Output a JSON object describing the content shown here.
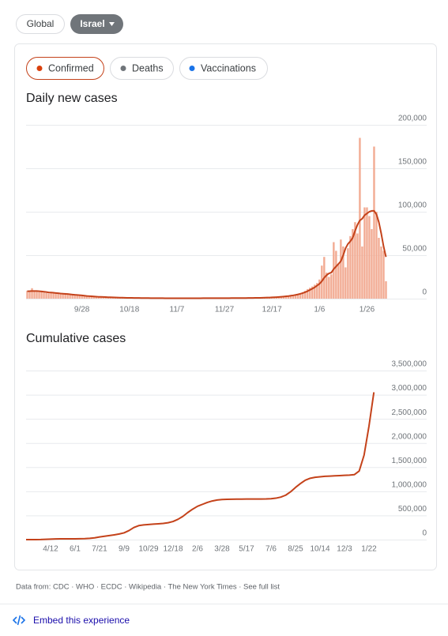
{
  "tabs": [
    "Global",
    "Israel"
  ],
  "metrics": [
    "Confirmed",
    "Deaths",
    "Vaccinations"
  ],
  "chart_data": [
    {
      "type": "bar",
      "title": "Daily new cases",
      "categories": [
        null,
        null,
        null,
        null,
        null,
        null,
        null,
        null,
        null,
        null,
        null,
        null,
        null,
        null,
        null,
        null,
        null,
        null,
        null,
        null,
        null,
        null,
        null,
        "9/28",
        null,
        null,
        null,
        null,
        null,
        null,
        null,
        null,
        null,
        null,
        null,
        null,
        null,
        null,
        null,
        null,
        null,
        null,
        null,
        "10/18",
        null,
        null,
        null,
        null,
        null,
        null,
        null,
        null,
        null,
        null,
        null,
        null,
        null,
        null,
        null,
        null,
        null,
        null,
        null,
        "11/7",
        null,
        null,
        null,
        null,
        null,
        null,
        null,
        null,
        null,
        null,
        null,
        null,
        null,
        null,
        null,
        null,
        null,
        null,
        null,
        "11/27",
        null,
        null,
        null,
        null,
        null,
        null,
        null,
        null,
        null,
        null,
        null,
        null,
        null,
        null,
        null,
        null,
        null,
        null,
        null,
        "12/17",
        null,
        null,
        null,
        null,
        null,
        null,
        null,
        null,
        null,
        null,
        null,
        null,
        null,
        null,
        null,
        null,
        null,
        null,
        null,
        "1/6",
        null,
        null,
        null,
        null,
        null,
        null,
        null,
        null,
        null,
        null,
        null,
        null,
        null,
        null,
        null,
        null,
        null,
        null,
        null,
        "1/26",
        null,
        null,
        null,
        null,
        null,
        null,
        null,
        null
      ],
      "series": [
        {
          "type": "bar",
          "color": "#f2ab93",
          "values": [
            9000,
            8500,
            12000,
            9500,
            8000,
            7500,
            8000,
            7000,
            6500,
            6000,
            7000,
            6500,
            6000,
            5500,
            5000,
            5200,
            6500,
            5000,
            4500,
            4000,
            3800,
            4200,
            3500,
            3000,
            2800,
            2500,
            2600,
            2400,
            2200,
            2000,
            1900,
            1800,
            1700,
            1600,
            1500,
            1400,
            1400,
            1300,
            1200,
            1100,
            1000,
            1000,
            900,
            900,
            850,
            800,
            800,
            750,
            700,
            700,
            650,
            600,
            600,
            600,
            550,
            550,
            500,
            500,
            500,
            500,
            450,
            450,
            450,
            450,
            450,
            400,
            400,
            450,
            500,
            500,
            450,
            500,
            550,
            500,
            500,
            550,
            600,
            550,
            500,
            600,
            600,
            550,
            600,
            600,
            650,
            600,
            650,
            700,
            700,
            650,
            700,
            750,
            800,
            700,
            800,
            900,
            1000,
            900,
            1000,
            1100,
            1200,
            1300,
            1500,
            1600,
            1800,
            1700,
            2000,
            2300,
            2500,
            2800,
            3200,
            3500,
            4000,
            4800,
            5500,
            6000,
            7500,
            9000,
            11000,
            12500,
            14000,
            16000,
            18000,
            22000,
            38000,
            48000,
            30000,
            25000,
            28000,
            65000,
            55000,
            40000,
            68000,
            60000,
            36000,
            58000,
            72000,
            80000,
            88000,
            75000,
            185000,
            60000,
            105000,
            105000,
            95000,
            80000,
            175000,
            100000,
            70000,
            60000,
            55000,
            20000
          ]
        },
        {
          "type": "line",
          "color": "#c4421a",
          "values": [
            8500,
            8600,
            8800,
            8800,
            8700,
            8500,
            8300,
            8000,
            7600,
            7200,
            7000,
            6800,
            6500,
            6200,
            5900,
            5700,
            5500,
            5300,
            5000,
            4700,
            4400,
            4200,
            4000,
            3700,
            3400,
            3100,
            2900,
            2700,
            2500,
            2300,
            2100,
            2000,
            1900,
            1800,
            1650,
            1550,
            1450,
            1350,
            1250,
            1150,
            1100,
            1000,
            950,
            900,
            870,
            830,
            800,
            770,
            730,
            700,
            670,
            640,
            620,
            600,
            580,
            560,
            540,
            520,
            510,
            500,
            480,
            470,
            460,
            450,
            440,
            440,
            440,
            450,
            460,
            470,
            480,
            490,
            500,
            510,
            520,
            530,
            540,
            550,
            560,
            570,
            570,
            580,
            590,
            600,
            610,
            620,
            640,
            660,
            680,
            690,
            700,
            720,
            740,
            760,
            780,
            800,
            850,
            900,
            950,
            1000,
            1100,
            1200,
            1300,
            1450,
            1600,
            1750,
            1950,
            2150,
            2400,
            2700,
            3000,
            3400,
            3800,
            4300,
            4900,
            5600,
            6400,
            7400,
            8600,
            10000,
            11500,
            13000,
            15000,
            17000,
            20000,
            24000,
            27000,
            29000,
            30000,
            34000,
            37000,
            40000,
            43000,
            50000,
            58000,
            63000,
            66000,
            70000,
            78000,
            85000,
            90000,
            92000,
            96000,
            98000,
            100000,
            101000,
            101000,
            97000,
            88000,
            75000,
            60000,
            48000
          ]
        }
      ],
      "ylim": [
        0,
        200000
      ],
      "yticks": [
        0,
        {
          "value": 50000,
          "label": "50,000"
        },
        {
          "value": 100000,
          "label": "100,000"
        },
        {
          "value": 150000,
          "label": "150,000"
        },
        {
          "value": 200000,
          "label": "200,000"
        }
      ],
      "grid": true
    },
    {
      "type": "line",
      "title": "Cumulative cases",
      "categories": [
        null,
        null,
        null,
        null,
        null,
        "4/12",
        null,
        null,
        null,
        null,
        "6/1",
        null,
        null,
        null,
        null,
        "7/21",
        null,
        null,
        null,
        null,
        "9/9",
        null,
        null,
        null,
        null,
        "10/29",
        null,
        null,
        null,
        null,
        "12/18",
        null,
        null,
        null,
        null,
        "2/6",
        null,
        null,
        null,
        null,
        "3/28",
        null,
        null,
        null,
        null,
        "5/17",
        null,
        null,
        null,
        null,
        "7/6",
        null,
        null,
        null,
        null,
        "8/25",
        null,
        null,
        null,
        null,
        "10/14",
        null,
        null,
        null,
        null,
        "12/3",
        null,
        null,
        null,
        null,
        "1/22",
        null
      ],
      "color": "#c4421a",
      "values": [
        0,
        10,
        100,
        1500,
        6800,
        11000,
        14500,
        16200,
        16500,
        16700,
        17300,
        18800,
        21000,
        26000,
        37000,
        55000,
        70000,
        84000,
        99000,
        116000,
        140000,
        187000,
        250000,
        290000,
        305000,
        313000,
        320000,
        327000,
        335000,
        350000,
        375000,
        420000,
        480000,
        560000,
        630000,
        690000,
        730000,
        770000,
        800000,
        820000,
        830000,
        834000,
        836000,
        838000,
        839000,
        839500,
        840000,
        840000,
        840500,
        842000,
        846000,
        858000,
        880000,
        920000,
        990000,
        1080000,
        1160000,
        1230000,
        1270000,
        1290000,
        1300000,
        1310000,
        1315000,
        1320000,
        1325000,
        1330000,
        1335000,
        1345000,
        1420000,
        1750000,
        2350000,
        3050000
      ],
      "ylim": [
        0,
        3500000
      ],
      "yticks": [
        0,
        {
          "value": 500000,
          "label": "500,000"
        },
        {
          "value": 1000000,
          "label": "1,000,000"
        },
        {
          "value": 1500000,
          "label": "1,500,000"
        },
        {
          "value": 2000000,
          "label": "2,000,000"
        },
        {
          "value": 2500000,
          "label": "2,500,000"
        },
        {
          "value": 3000000,
          "label": "3,000,000"
        },
        {
          "value": 3500000,
          "label": "3,500,000"
        }
      ],
      "grid": true
    }
  ],
  "footer": "Data from: CDC · WHO · ECDC · Wikipedia · The New York Times · See full list",
  "embed": "Embed this experience"
}
